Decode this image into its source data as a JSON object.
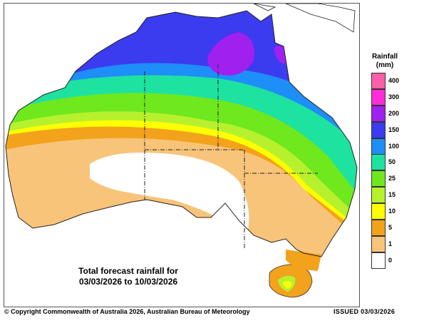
{
  "map": {
    "caption_line1": "Total forecast rainfall for",
    "caption_line2": "03/03/2026 to 10/03/2026"
  },
  "legend": {
    "title": "Rainfall",
    "units": "(mm)",
    "items": [
      {
        "label": "400",
        "color": "#ff5fa8"
      },
      {
        "label": "300",
        "color": "#ff2cd8"
      },
      {
        "label": "200",
        "color": "#a020f0"
      },
      {
        "label": "150",
        "color": "#3b3bef"
      },
      {
        "label": "100",
        "color": "#1e8ef8"
      },
      {
        "label": "50",
        "color": "#1ee2a0"
      },
      {
        "label": "25",
        "color": "#6fe81e"
      },
      {
        "label": "15",
        "color": "#b7f12e"
      },
      {
        "label": "10",
        "color": "#ffff00"
      },
      {
        "label": "5",
        "color": "#f3a21c"
      },
      {
        "label": "1",
        "color": "#f8c47a"
      },
      {
        "label": "0",
        "color": "#ffffff"
      }
    ]
  },
  "footer": {
    "copyright": "© Copyright Commonwealth of Australia 2026, Australian Bureau of Meteorology",
    "issued": "ISSUED 03/03/2026"
  }
}
